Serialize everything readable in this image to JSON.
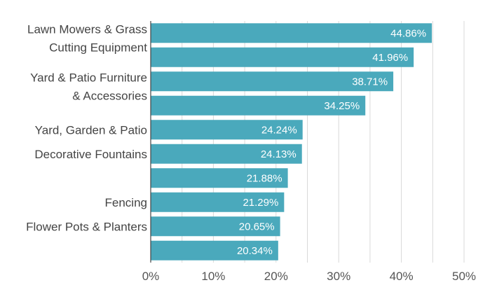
{
  "chart_data": {
    "type": "bar",
    "orientation": "horizontal",
    "title": "",
    "xlabel": "",
    "ylabel": "",
    "xlim": [
      0,
      50
    ],
    "ticks": [
      "0%",
      "10%",
      "20%",
      "30%",
      "40%",
      "50%"
    ],
    "tick_values": [
      0,
      10,
      20,
      30,
      40,
      50
    ],
    "grid": true,
    "legend": "none",
    "bar_color": "#4aa9bc",
    "categories": [
      [
        "Lawn Mowers & Grass",
        "Cutting Equipment"
      ],
      [],
      [
        "Yard & Patio Furniture",
        "& Accessories"
      ],
      [],
      [
        "Yard, Garden & Patio"
      ],
      [
        "Decorative Fountains"
      ],
      [],
      [
        "Fencing"
      ],
      [
        "Flower Pots & Planters"
      ],
      []
    ],
    "values": [
      44.86,
      41.96,
      38.71,
      34.25,
      24.24,
      24.13,
      21.88,
      21.29,
      20.65,
      20.34
    ],
    "value_labels": [
      "44.86%",
      "41.96%",
      "38.71%",
      "34.25%",
      "24.24%",
      "24.13%",
      "21.88%",
      "21.29%",
      "20.65%",
      "20.34%"
    ]
  }
}
